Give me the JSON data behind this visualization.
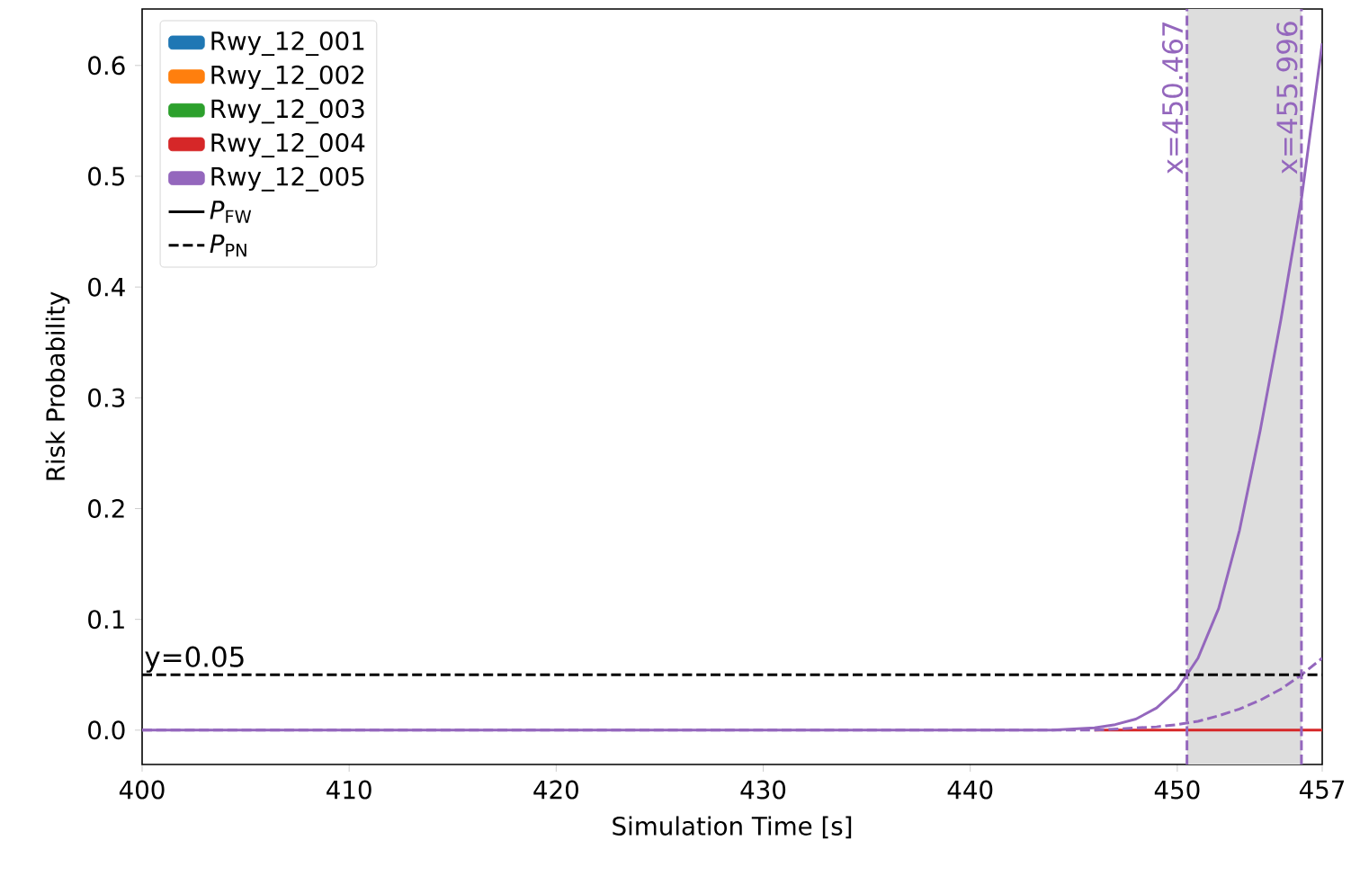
{
  "chart_data": {
    "type": "line",
    "xlabel": "Simulation Time [s]",
    "ylabel": "Risk Probability",
    "xlim": [
      400,
      457
    ],
    "ylim": [
      -0.031,
      0.651
    ],
    "xticks": [
      400,
      410,
      420,
      430,
      440,
      450,
      457
    ],
    "yticks": [
      {
        "value": 0,
        "label": "0.0"
      },
      0.1,
      0.2,
      0.3,
      0.4,
      0.5,
      0.6
    ],
    "legend": "top left",
    "series": [
      {
        "name": "Rwy_12_001",
        "color": "#1f77b4"
      },
      {
        "name": "Rwy_12_002",
        "color": "#ff7f0e"
      },
      {
        "name": "Rwy_12_003",
        "color": "#2ca02c"
      },
      {
        "name": "Rwy_12_004",
        "color": "#d62728",
        "line_style": "solid",
        "x": [
          446,
          457
        ],
        "values": [
          0,
          0
        ]
      },
      {
        "name": "Rwy_12_005",
        "color": "#9467bd",
        "line_style": "solid",
        "x": [
          400,
          444,
          445,
          446,
          447,
          448,
          449,
          450,
          451,
          452,
          453,
          454,
          455,
          456,
          457
        ],
        "values": [
          0,
          0,
          0.001,
          0.002,
          0.005,
          0.01,
          0.02,
          0.037,
          0.065,
          0.11,
          0.18,
          0.27,
          0.37,
          0.48,
          0.62
        ]
      },
      {
        "color": "#9467bd",
        "line_style": "dashed",
        "x": [
          400,
          446,
          447,
          448,
          449,
          450,
          451,
          452,
          453,
          454,
          455,
          456,
          457
        ],
        "values": [
          0,
          0,
          0.001,
          0.002,
          0.003,
          0.005,
          0.008,
          0.013,
          0.019,
          0.027,
          0.037,
          0.05,
          0.065
        ]
      },
      {
        "name": "*P*$_{FW}$",
        "color": "#000000",
        "line_style": "solid"
      },
      {
        "name": "*P*$_{PN}$",
        "color": "#000000",
        "line_style": "dashed"
      }
    ],
    "bands": [
      {
        "axis": "x",
        "from": 450.467,
        "to": 455.996,
        "color": "#dddddd"
      }
    ],
    "ref_lines": [
      {
        "axis": "y",
        "value": 0.05,
        "label": "y=0.05",
        "color": "#000000",
        "line_style": "dashed"
      },
      {
        "axis": "x",
        "value": 450.467,
        "label": "x=450.467",
        "color": "#9467bd",
        "line_style": "dashed"
      },
      {
        "axis": "x",
        "value": 455.996,
        "label": "x=455.996",
        "color": "#9467bd",
        "line_style": "dashed"
      }
    ]
  }
}
